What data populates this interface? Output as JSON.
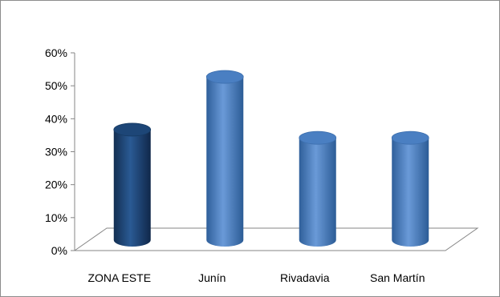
{
  "chart_data": {
    "type": "bar",
    "categories": [
      "ZONA ESTE",
      "Junín",
      "Rivadavia",
      "San Martín"
    ],
    "values": [
      35,
      51,
      32.5,
      32.5
    ],
    "ylim": [
      0,
      60
    ],
    "yticks": [
      0,
      10,
      20,
      30,
      40,
      50,
      60
    ],
    "ytick_labels": [
      "0%",
      "10%",
      "20%",
      "30%",
      "40%",
      "50%",
      "60%"
    ],
    "grid": false,
    "legend": "none",
    "colors": {
      "highlight": "#1F497D",
      "series": "#4F81BD",
      "axis": "#868686"
    }
  }
}
